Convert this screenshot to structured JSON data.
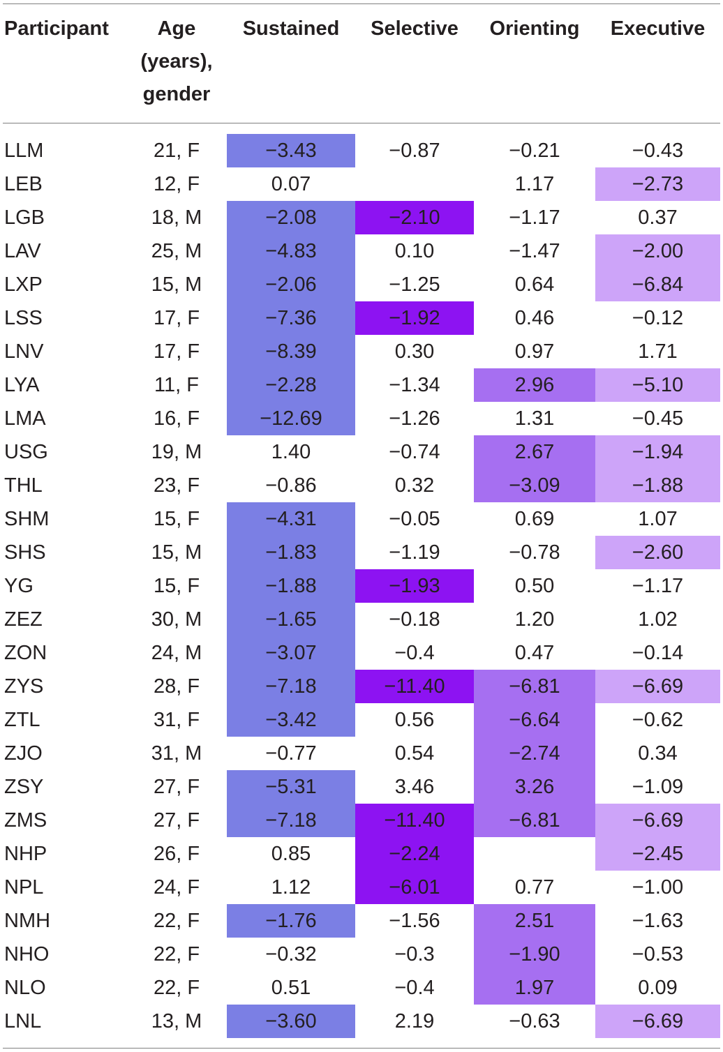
{
  "table": {
    "headers": {
      "participant": "Participant",
      "age": "Age\n(years),\ngender",
      "sustained": "Sustained",
      "selective": "Selective",
      "orienting": "Orienting",
      "executive": "Executive"
    },
    "highlight_colors": {
      "sustained": "#7b7fe4",
      "selective": "#8d13f2",
      "orienting": "#a66ff1",
      "executive": "#cda4f9"
    },
    "rows": [
      {
        "participant": "LLM",
        "age": "21, F",
        "sustained": "−3.43",
        "selective": "−0.87",
        "orienting": "−0.21",
        "executive": "−0.43",
        "hl": [
          true,
          false,
          false,
          false
        ]
      },
      {
        "participant": "LEB",
        "age": "12, F",
        "sustained": "0.07",
        "selective": "",
        "orienting": "1.17",
        "executive": "−2.73",
        "hl": [
          false,
          false,
          false,
          true
        ]
      },
      {
        "participant": "LGB",
        "age": "18, M",
        "sustained": "−2.08",
        "selective": "−2.10",
        "orienting": "−1.17",
        "executive": "0.37",
        "hl": [
          true,
          true,
          false,
          false
        ]
      },
      {
        "participant": "LAV",
        "age": "25, M",
        "sustained": "−4.83",
        "selective": "0.10",
        "orienting": "−1.47",
        "executive": "−2.00",
        "hl": [
          true,
          false,
          false,
          true
        ]
      },
      {
        "participant": "LXP",
        "age": "15, M",
        "sustained": "−2.06",
        "selective": "−1.25",
        "orienting": "0.64",
        "executive": "−6.84",
        "hl": [
          true,
          false,
          false,
          true
        ]
      },
      {
        "participant": "LSS",
        "age": "17, F",
        "sustained": "−7.36",
        "selective": "−1.92",
        "orienting": "0.46",
        "executive": "−0.12",
        "hl": [
          true,
          true,
          false,
          false
        ]
      },
      {
        "participant": "LNV",
        "age": "17, F",
        "sustained": "−8.39",
        "selective": "0.30",
        "orienting": "0.97",
        "executive": "1.71",
        "hl": [
          true,
          false,
          false,
          false
        ]
      },
      {
        "participant": "LYA",
        "age": "11, F",
        "sustained": "−2.28",
        "selective": "−1.34",
        "orienting": "2.96",
        "executive": "−5.10",
        "hl": [
          true,
          false,
          true,
          true
        ]
      },
      {
        "participant": "LMA",
        "age": "16, F",
        "sustained": "−12.69",
        "selective": "−1.26",
        "orienting": "1.31",
        "executive": "−0.45",
        "hl": [
          true,
          false,
          false,
          false
        ]
      },
      {
        "participant": "USG",
        "age": "19, M",
        "sustained": "1.40",
        "selective": "−0.74",
        "orienting": "2.67",
        "executive": "−1.94",
        "hl": [
          false,
          false,
          true,
          true
        ]
      },
      {
        "participant": "THL",
        "age": "23, F",
        "sustained": "−0.86",
        "selective": "0.32",
        "orienting": "−3.09",
        "executive": "−1.88",
        "hl": [
          false,
          false,
          true,
          true
        ]
      },
      {
        "participant": "SHM",
        "age": "15, F",
        "sustained": "−4.31",
        "selective": "−0.05",
        "orienting": "0.69",
        "executive": "1.07",
        "hl": [
          true,
          false,
          false,
          false
        ]
      },
      {
        "participant": "SHS",
        "age": "15, M",
        "sustained": "−1.83",
        "selective": "−1.19",
        "orienting": "−0.78",
        "executive": "−2.60",
        "hl": [
          true,
          false,
          false,
          true
        ]
      },
      {
        "participant": "YG",
        "age": "15, F",
        "sustained": "−1.88",
        "selective": "−1.93",
        "orienting": "0.50",
        "executive": "−1.17",
        "hl": [
          true,
          true,
          false,
          false
        ]
      },
      {
        "participant": "ZEZ",
        "age": "30, M",
        "sustained": "−1.65",
        "selective": "−0.18",
        "orienting": "1.20",
        "executive": "1.02",
        "hl": [
          true,
          false,
          false,
          false
        ]
      },
      {
        "participant": "ZON",
        "age": "24, M",
        "sustained": "−3.07",
        "selective": "−0.4",
        "orienting": "0.47",
        "executive": "−0.14",
        "hl": [
          true,
          false,
          false,
          false
        ]
      },
      {
        "participant": "ZYS",
        "age": "28, F",
        "sustained": "−7.18",
        "selective": "−11.40",
        "orienting": "−6.81",
        "executive": "−6.69",
        "hl": [
          true,
          true,
          true,
          true
        ]
      },
      {
        "participant": "ZTL",
        "age": "31, F",
        "sustained": "−3.42",
        "selective": "0.56",
        "orienting": "−6.64",
        "executive": "−0.62",
        "hl": [
          true,
          false,
          true,
          false
        ]
      },
      {
        "participant": "ZJO",
        "age": "31, M",
        "sustained": "−0.77",
        "selective": "0.54",
        "orienting": "−2.74",
        "executive": "0.34",
        "hl": [
          false,
          false,
          true,
          false
        ]
      },
      {
        "participant": "ZSY",
        "age": "27, F",
        "sustained": "−5.31",
        "selective": "3.46",
        "orienting": "3.26",
        "executive": "−1.09",
        "hl": [
          true,
          false,
          true,
          false
        ]
      },
      {
        "participant": "ZMS",
        "age": "27, F",
        "sustained": "−7.18",
        "selective": "−11.40",
        "orienting": "−6.81",
        "executive": "−6.69",
        "hl": [
          true,
          true,
          true,
          true
        ]
      },
      {
        "participant": "NHP",
        "age": "26, F",
        "sustained": "0.85",
        "selective": "−2.24",
        "orienting": "",
        "executive": "−2.45",
        "hl": [
          false,
          true,
          false,
          true
        ]
      },
      {
        "participant": "NPL",
        "age": "24, F",
        "sustained": "1.12",
        "selective": "−6.01",
        "orienting": "0.77",
        "executive": "−1.00",
        "hl": [
          false,
          true,
          false,
          false
        ]
      },
      {
        "participant": "NMH",
        "age": "22, F",
        "sustained": "−1.76",
        "selective": "−1.56",
        "orienting": "2.51",
        "executive": "−1.63",
        "hl": [
          true,
          false,
          true,
          false
        ]
      },
      {
        "participant": "NHO",
        "age": "22, F",
        "sustained": "−0.32",
        "selective": "−0.3",
        "orienting": "−1.90",
        "executive": "−0.53",
        "hl": [
          false,
          false,
          true,
          false
        ]
      },
      {
        "participant": "NLO",
        "age": "22, F",
        "sustained": "0.51",
        "selective": "−0.4",
        "orienting": "1.97",
        "executive": "0.09",
        "hl": [
          false,
          false,
          true,
          false
        ]
      },
      {
        "participant": "LNL",
        "age": "13, M",
        "sustained": "−3.60",
        "selective": "2.19",
        "orienting": "−0.63",
        "executive": "−6.69",
        "hl": [
          true,
          false,
          false,
          true
        ]
      }
    ]
  }
}
